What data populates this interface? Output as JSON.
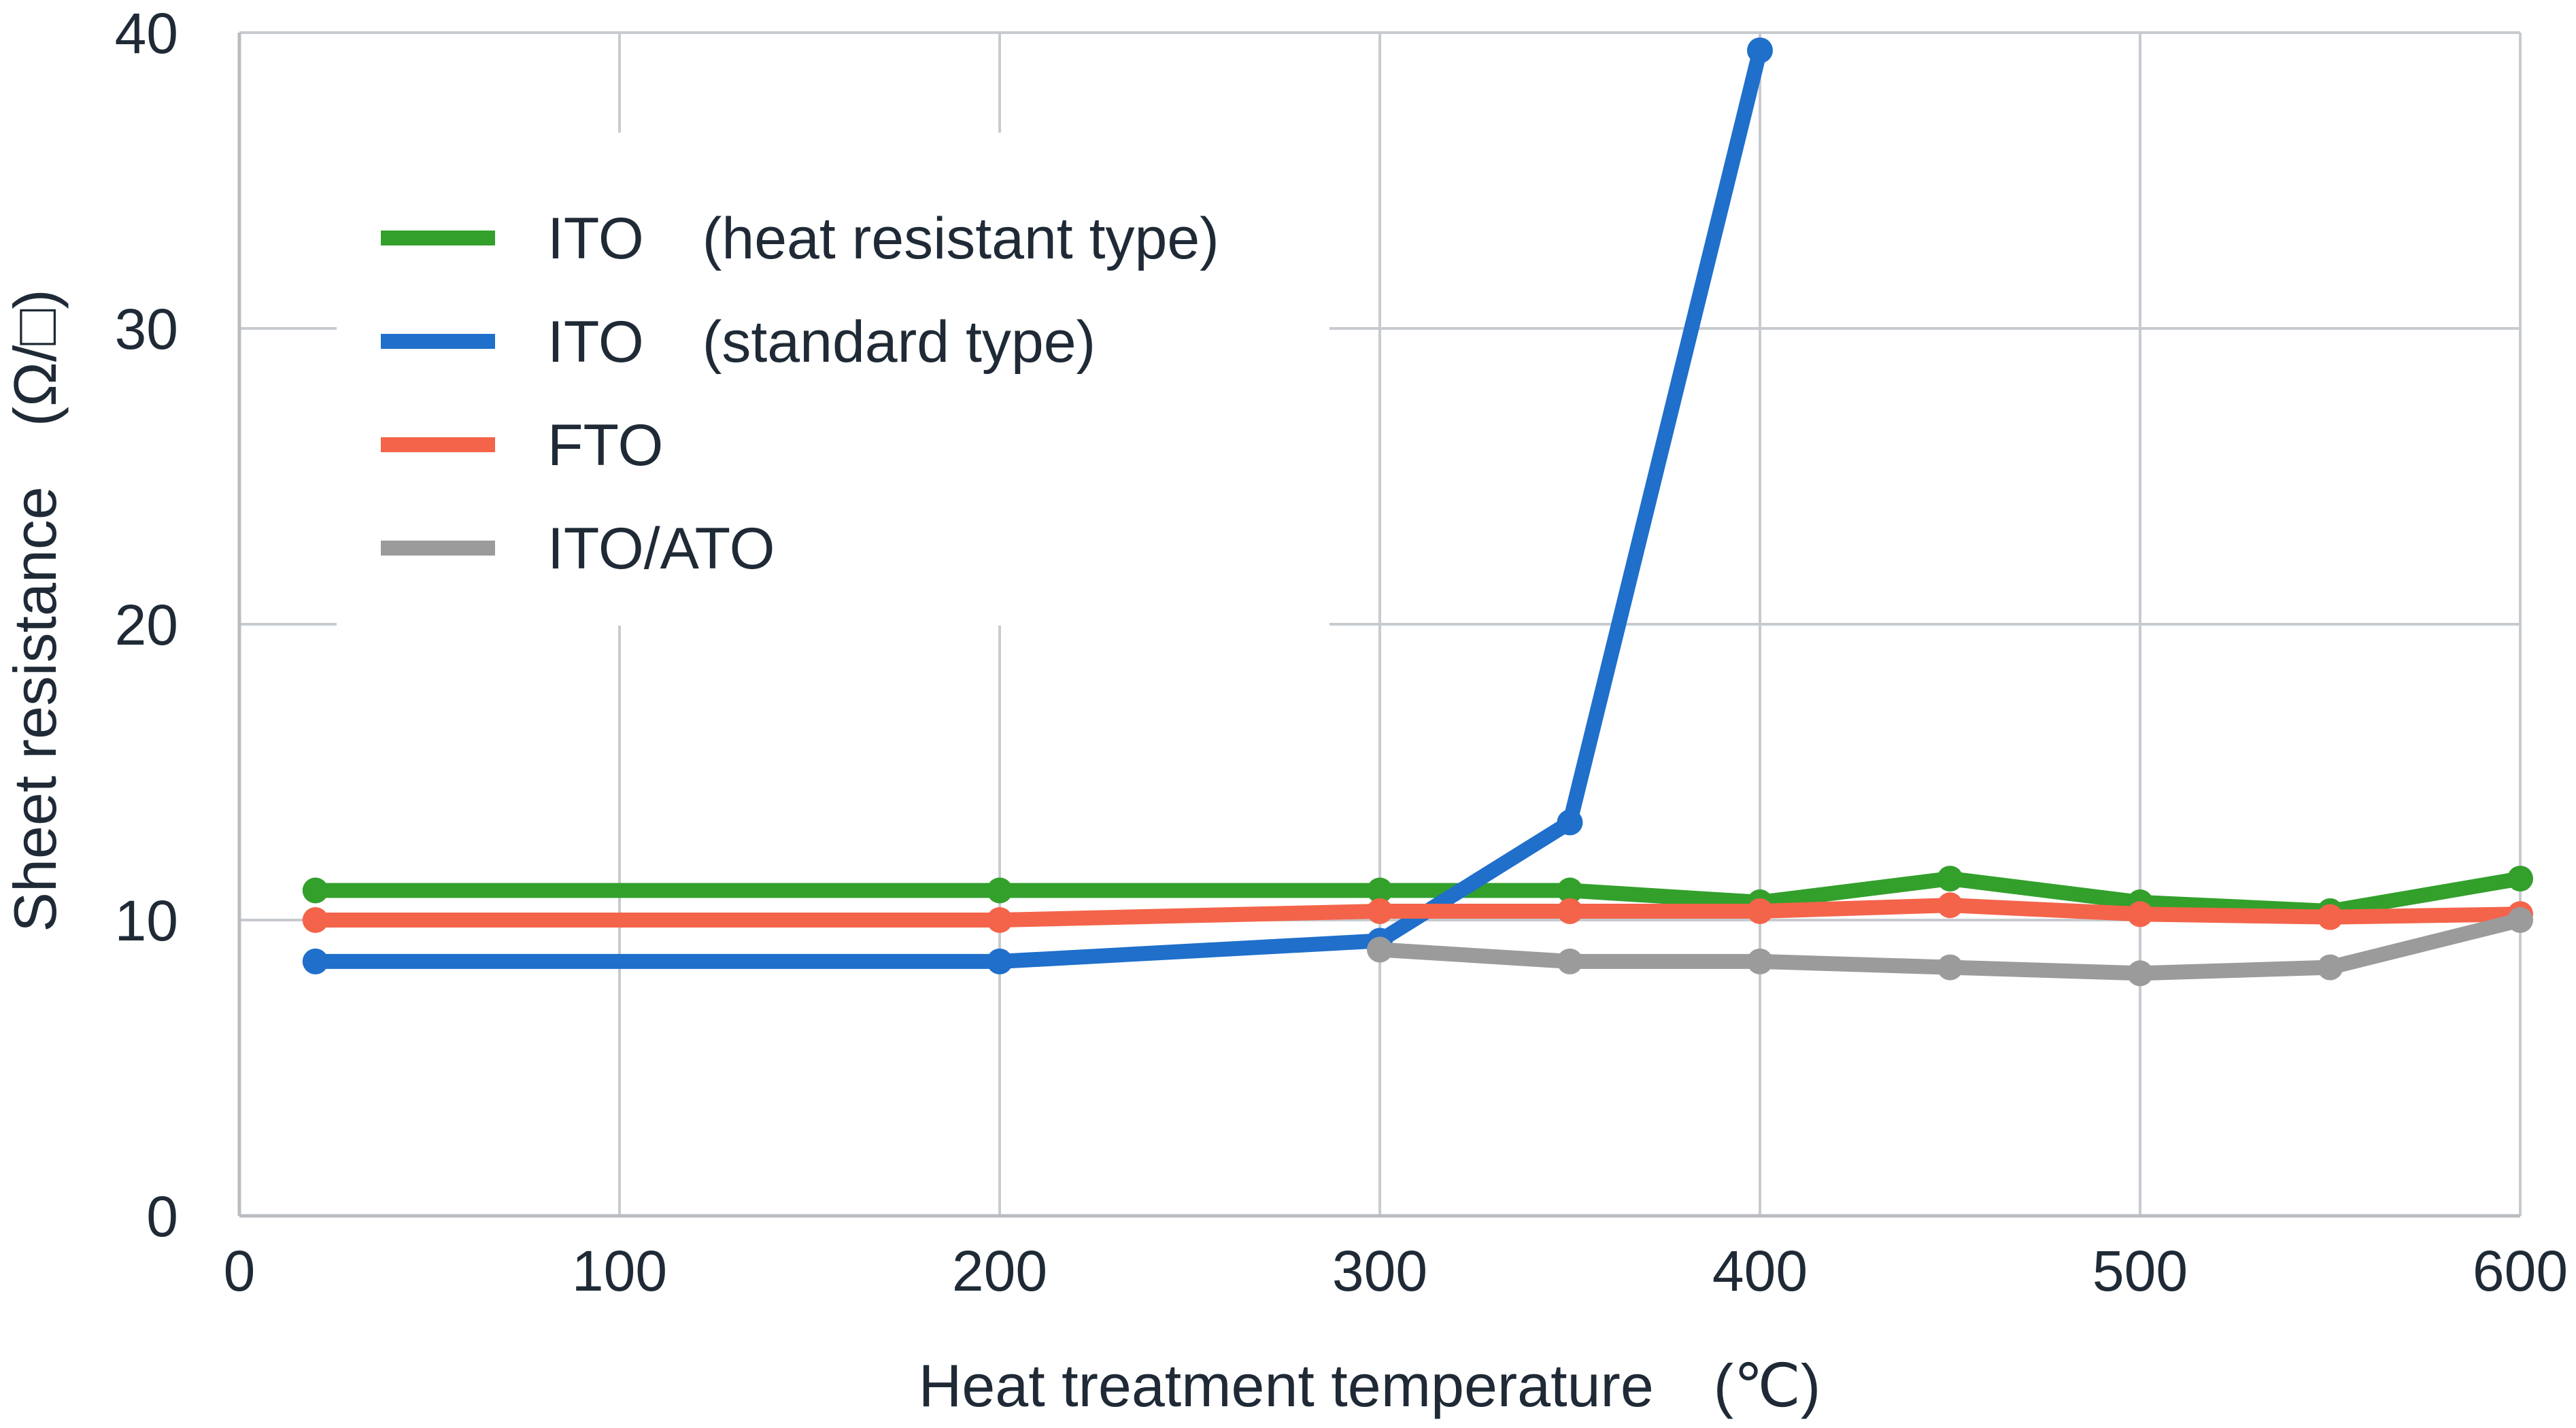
{
  "chart_data": {
    "type": "line",
    "xlabel": "Heat treatment temperature　(℃)",
    "ylabel": "Sheet resistance　(Ω/□)",
    "xlim": [
      0,
      600
    ],
    "ylim": [
      0,
      40
    ],
    "x_ticks": [
      0,
      100,
      200,
      300,
      400,
      500,
      600
    ],
    "y_ticks": [
      0,
      10,
      20,
      30,
      40
    ],
    "grid": true,
    "legend_position": "upper-left",
    "series": [
      {
        "name": "ITO　(heat resistant type)",
        "color": "#33a02c",
        "x": [
          20,
          200,
          300,
          350,
          400,
          450,
          500,
          550,
          600
        ],
        "y": [
          11.0,
          11.0,
          11.0,
          11.0,
          10.6,
          11.4,
          10.6,
          10.3,
          11.4
        ]
      },
      {
        "name": "ITO　(standard type)",
        "color": "#1f6fcb",
        "x": [
          20,
          200,
          300,
          350,
          400
        ],
        "y": [
          8.6,
          8.6,
          9.3,
          13.3,
          39.4
        ]
      },
      {
        "name": "FTO",
        "color": "#f4644a",
        "x": [
          20,
          200,
          300,
          350,
          400,
          450,
          500,
          550,
          600
        ],
        "y": [
          10.0,
          10.0,
          10.3,
          10.3,
          10.3,
          10.5,
          10.2,
          10.1,
          10.2
        ]
      },
      {
        "name": "ITO/ATO",
        "color": "#9b9b9b",
        "x": [
          300,
          350,
          400,
          450,
          500,
          550,
          600
        ],
        "y": [
          9.0,
          8.6,
          8.6,
          8.4,
          8.2,
          8.4,
          10.0
        ]
      }
    ]
  }
}
